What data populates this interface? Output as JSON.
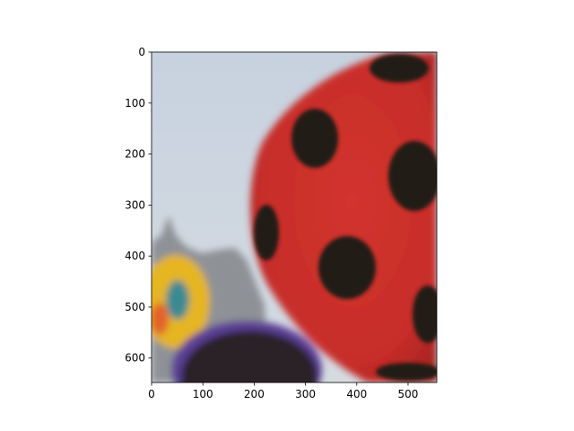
{
  "figure": {
    "image_description": "blurred photo of a red hot-air balloon with black polka dots (ladybug pattern) against a pale blue-grey sky; a yellow balloon edge at lower left, a dark purple-trimmed balloon top at bottom, grey hills in the background",
    "colors": {
      "sky": "#c9d3df",
      "balloon_red": "#c9302c",
      "spots": "#231a18",
      "yellow_balloon": "#e5b520",
      "purple_trim": "#5b3f96",
      "dark_balloon": "#2a2226",
      "hill": "#8e9296"
    }
  },
  "chart_data": {
    "type": "image",
    "xlim": [
      0,
      556
    ],
    "ylim": [
      648,
      0
    ],
    "x_ticks": [
      0,
      100,
      200,
      300,
      400,
      500
    ],
    "y_ticks": [
      0,
      100,
      200,
      300,
      400,
      500,
      600
    ],
    "x_tick_labels": [
      "0",
      "100",
      "200",
      "300",
      "400",
      "500"
    ],
    "y_tick_labels": [
      "0",
      "100",
      "200",
      "300",
      "400",
      "500",
      "600"
    ]
  }
}
